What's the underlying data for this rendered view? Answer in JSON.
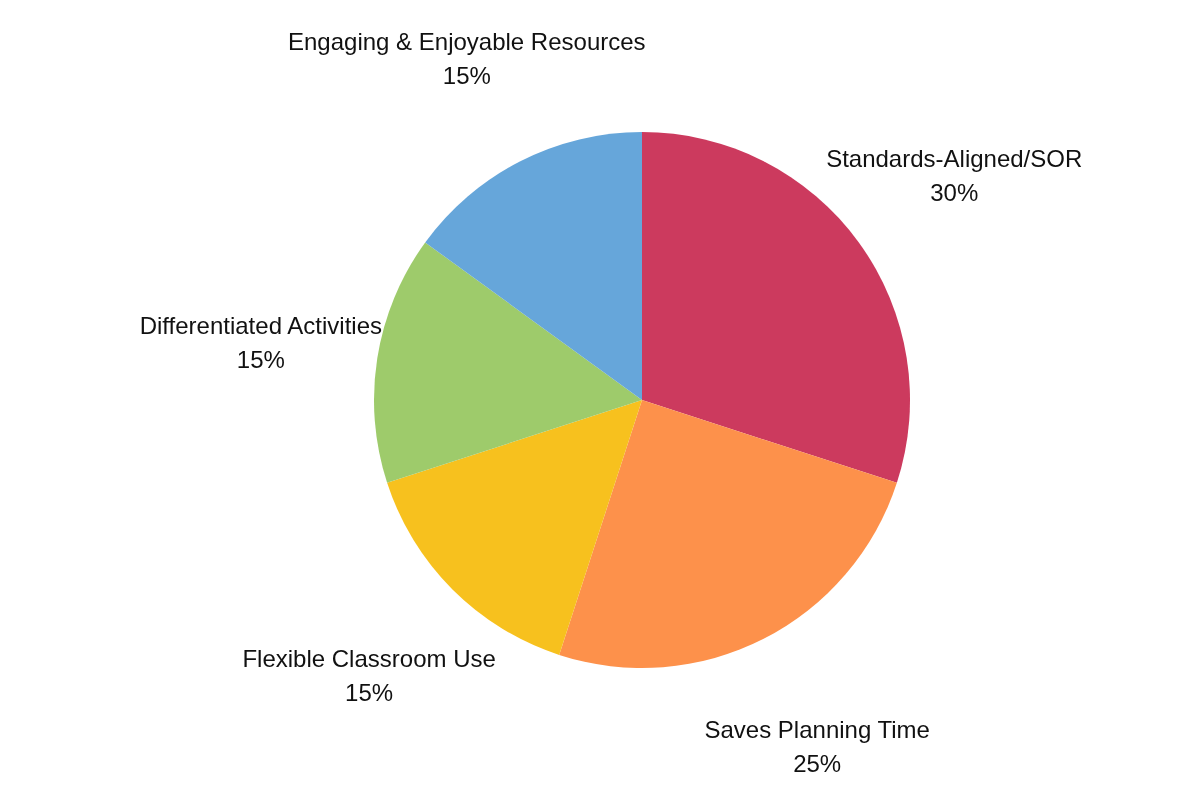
{
  "chart_data": {
    "type": "pie",
    "categories": [
      "Standards-Aligned/SOR",
      "Saves Planning Time",
      "Flexible Classroom Use",
      "Differentiated Activities",
      "Engaging & Enjoyable Resources"
    ],
    "values": [
      30,
      25,
      15,
      15,
      15
    ],
    "colors": [
      "#cc3a5e",
      "#fd914b",
      "#f7c11e",
      "#9ecb6b",
      "#66a6da"
    ],
    "value_labels": [
      "30%",
      "25%",
      "15%",
      "15%",
      "15%"
    ],
    "legend": false
  }
}
